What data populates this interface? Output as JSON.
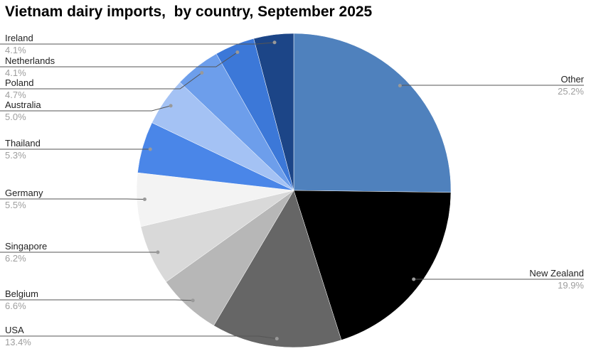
{
  "chart_data": {
    "type": "pie",
    "title": "Vietnam dairy imports,  by country, September 2025",
    "start_angle": "12 o'clock, clockwise",
    "slices": [
      {
        "label": "Other",
        "value": 25.2,
        "display": "25.2%",
        "color": "#4f81bd"
      },
      {
        "label": "New Zealand",
        "value": 19.9,
        "display": "19.9%",
        "color": "#000000"
      },
      {
        "label": "USA",
        "value": 13.4,
        "display": "13.4%",
        "color": "#666666"
      },
      {
        "label": "Belgium",
        "value": 6.6,
        "display": "6.6%",
        "color": "#b7b7b7"
      },
      {
        "label": "Singapore",
        "value": 6.2,
        "display": "6.2%",
        "color": "#d9d9d9"
      },
      {
        "label": "Germany",
        "value": 5.5,
        "display": "5.5%",
        "color": "#f3f3f3"
      },
      {
        "label": "Thailand",
        "value": 5.3,
        "display": "5.3%",
        "color": "#4a86e8"
      },
      {
        "label": "Australia",
        "value": 5.0,
        "display": "5.0%",
        "color": "#a4c2f4"
      },
      {
        "label": "Poland",
        "value": 4.7,
        "display": "4.7%",
        "color": "#6d9eeb"
      },
      {
        "label": "Netherlands",
        "value": 4.1,
        "display": "4.1%",
        "color": "#3c78d8"
      },
      {
        "label": "Ireland",
        "value": 4.1,
        "display": "4.1%",
        "color": "#1c4587"
      }
    ],
    "legend": "none (leader-line labels)"
  }
}
